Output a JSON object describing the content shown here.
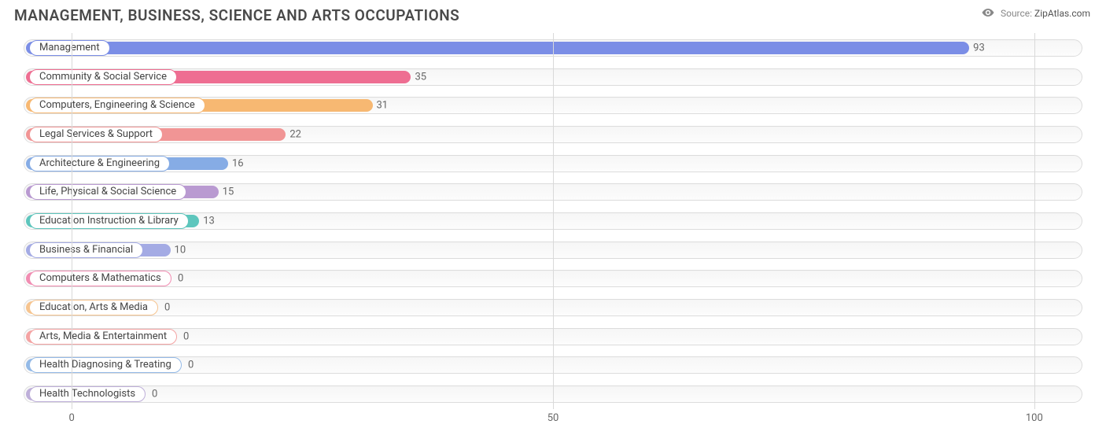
{
  "title": "MANAGEMENT, BUSINESS, SCIENCE AND ARTS OCCUPATIONS",
  "source": {
    "label": "Source:",
    "name": "ZipAtlas.com"
  },
  "colors": {
    "title": "#4a4a4a",
    "grid": "#d9d9d9",
    "track_border": "#dcdcdc",
    "track_fill_top": "#f6f6f6",
    "track_fill_bottom": "#fcfcfc",
    "text": "#666666",
    "background": "#ffffff"
  },
  "chart": {
    "type": "bar-horizontal",
    "xlim": [
      -5,
      105
    ],
    "ticks": [
      0,
      50,
      100
    ],
    "zero_line_x": 0,
    "pill_font_size": 13,
    "value_font_size": 13,
    "bar_gap": 8,
    "data": [
      {
        "label": "Management",
        "value": 93,
        "color": "#7b8ee6"
      },
      {
        "label": "Community & Social Service",
        "value": 35,
        "color": "#ee6e92"
      },
      {
        "label": "Computers, Engineering & Science",
        "value": 31,
        "color": "#f7b872"
      },
      {
        "label": "Legal Services & Support",
        "value": 22,
        "color": "#f19595"
      },
      {
        "label": "Architecture & Engineering",
        "value": 16,
        "color": "#86ace5"
      },
      {
        "label": "Life, Physical & Social Science",
        "value": 15,
        "color": "#b99ad1"
      },
      {
        "label": "Education Instruction & Library",
        "value": 13,
        "color": "#5ec6bd"
      },
      {
        "label": "Business & Financial",
        "value": 10,
        "color": "#a4abe4"
      },
      {
        "label": "Computers & Mathematics",
        "value": 0,
        "color": "#f18db2"
      },
      {
        "label": "Education, Arts & Media",
        "value": 0,
        "color": "#f6c48f"
      },
      {
        "label": "Arts, Media & Entertainment",
        "value": 0,
        "color": "#f4a3a3"
      },
      {
        "label": "Health Diagnosing & Treating",
        "value": 0,
        "color": "#94bae7"
      },
      {
        "label": "Health Technologists",
        "value": 0,
        "color": "#beafd9"
      }
    ]
  }
}
